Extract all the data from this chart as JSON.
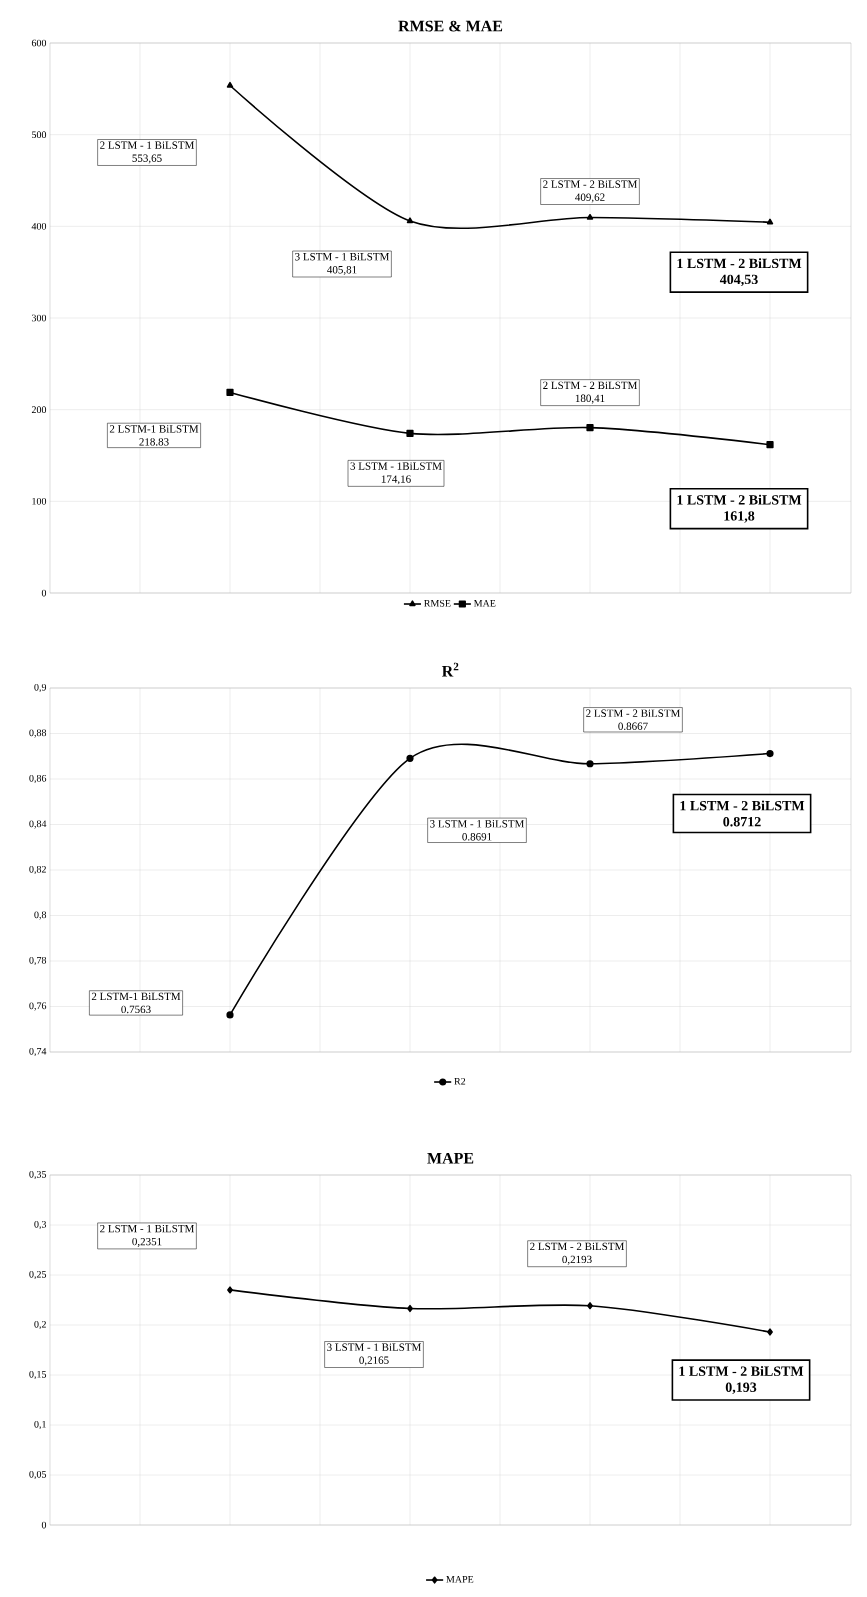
{
  "chart_data": [
    {
      "type": "line",
      "title": "RMSE & MAE",
      "categories": [
        null,
        null,
        null,
        null
      ],
      "ylim": [
        0,
        600
      ],
      "yticks": [
        0,
        100,
        200,
        300,
        400,
        500,
        600
      ],
      "grid": true,
      "legend": "bottom",
      "series": [
        {
          "name": "RMSE",
          "color": "#000000",
          "marker": "triangle",
          "line_style": "solid",
          "values": [
            553.65,
            405.81,
            409.62,
            404.53
          ]
        },
        {
          "name": "MAE",
          "color": "#000000",
          "marker": "square",
          "line_style": "solid",
          "values": [
            218.83,
            174.16,
            180.41,
            161.8
          ]
        }
      ],
      "annotations": [
        "2 LSTM - 1 BiLSTM",
        "553,65",
        "3 LSTM - 1 BiLSTM",
        "405,81",
        "2 LSTM - 2 BiLSTM",
        "409,62",
        "1 LSTM - 2 BiLSTM",
        "404,53",
        "2 LSTM-1 BiLSTM",
        "218.83",
        "3 LSTM - 1BiLSTM",
        "174,16",
        "2 LSTM - 2 BiLSTM",
        "180,41",
        "1 LSTM - 2 BiLSTM",
        "161,8"
      ]
    },
    {
      "type": "line",
      "title": "R$^{2}$",
      "categories": [
        null,
        null,
        null,
        null
      ],
      "ylim": [
        0.74,
        0.9
      ],
      "yticks": [
        {
          "value": 0.74,
          "label": "0,74"
        },
        {
          "value": 0.76,
          "label": "0,76"
        },
        {
          "value": 0.78,
          "label": "0,78"
        },
        {
          "value": 0.8,
          "label": "0,8"
        },
        {
          "value": 0.82,
          "label": "0,82"
        },
        {
          "value": 0.84,
          "label": "0,84"
        },
        {
          "value": 0.86,
          "label": "0,86"
        },
        {
          "value": 0.88,
          "label": "0,88"
        },
        {
          "value": 0.9,
          "label": "0,9"
        }
      ],
      "grid": true,
      "legend": "bottom",
      "series": [
        {
          "name": "R2",
          "color": "#000000",
          "marker": "circle",
          "line_style": "solid",
          "values": [
            0.7563,
            0.8691,
            0.8667,
            0.8712
          ]
        }
      ],
      "annotations": [
        "2 LSTM-1 BiLSTM",
        "0.7563",
        "3 LSTM - 1 BiLSTM",
        "0.8691",
        "2 LSTM - 2 BiLSTM",
        "0.8667",
        "1 LSTM - 2 BiLSTM",
        "0.8712"
      ]
    },
    {
      "type": "line",
      "title": "MAPE",
      "categories": [
        null,
        null,
        null,
        null
      ],
      "ylim": [
        0,
        0.35
      ],
      "yticks": [
        0,
        {
          "value": 0.05,
          "label": "0,05"
        },
        {
          "value": 0.1,
          "label": "0,1"
        },
        {
          "value": 0.15,
          "label": "0,15"
        },
        {
          "value": 0.2,
          "label": "0,2"
        },
        {
          "value": 0.25,
          "label": "0,25"
        },
        {
          "value": 0.3,
          "label": "0,3"
        },
        {
          "value": 0.35,
          "label": "0,35"
        }
      ],
      "grid": true,
      "legend": "bottom",
      "series": [
        {
          "name": "MAPE",
          "color": "#000000",
          "marker": "diamond",
          "line_style": "solid",
          "values": [
            0.2351,
            0.2165,
            0.2193,
            0.193
          ]
        }
      ],
      "annotations": [
        "2 LSTM - 1 BiLSTM",
        "0,2351",
        "3 LSTM - 1 BiLSTM",
        "0,2165",
        "2 LSTM - 2 BiLSTM",
        "0,2193",
        "1 LSTM - 2 BiLSTM",
        "0,193"
      ]
    }
  ]
}
